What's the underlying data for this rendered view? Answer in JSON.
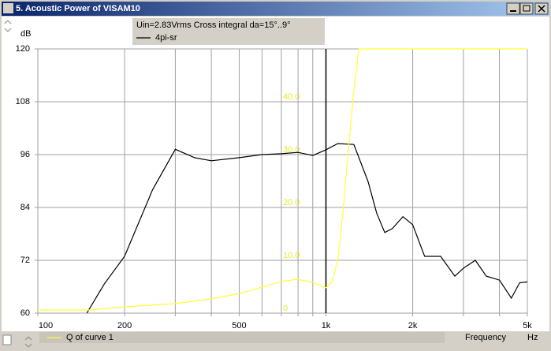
{
  "window": {
    "title": "5. Acoustic Power of VISAM10"
  },
  "chart_data": {
    "type": "line",
    "annotation": "Uin=2.83Vrms Cross integral da=15°..9°",
    "ylabel": "dB",
    "xlabel": "Frequency",
    "xunit": "Hz",
    "xscale": "log",
    "grid": true,
    "xlim": [
      100,
      5000
    ],
    "xticks": [
      100,
      200,
      500,
      {
        "value": 1000,
        "label": "1k"
      },
      {
        "value": 2000,
        "label": "2k"
      },
      {
        "value": 5000,
        "label": "5k"
      }
    ],
    "xminor": [
      300,
      400,
      600,
      700,
      800,
      900,
      3000,
      4000
    ],
    "ylim": [
      60,
      120
    ],
    "yticks": [
      60,
      72,
      84,
      96,
      108,
      120
    ],
    "y2lim": [
      0,
      50
    ],
    "y2ticks": [
      0,
      {
        "value": 10,
        "label": "10.0"
      },
      {
        "value": 20,
        "label": "20.0"
      },
      {
        "value": 30,
        "label": "30.0"
      },
      {
        "value": 40,
        "label": "40.0"
      }
    ],
    "cursor": 1000,
    "series": [
      {
        "name": "4pi-sr",
        "color": "#000000",
        "x": [
          148,
          170,
          200,
          250,
          300,
          350,
          400,
          500,
          600,
          700,
          800,
          900,
          1000,
          1100,
          1250,
          1400,
          1500,
          1600,
          1700,
          1850,
          2000,
          2200,
          2500,
          2800,
          3000,
          3300,
          3600,
          4000,
          4400,
          4700,
          5000
        ],
        "values": [
          60,
          66.6,
          72.9,
          88,
          97.2,
          95.3,
          94.6,
          95.3,
          96,
          96.2,
          96.5,
          95.8,
          97.1,
          98.5,
          98.3,
          89.9,
          82.7,
          78.3,
          79.2,
          81.9,
          80.1,
          72.9,
          72.9,
          68.4,
          70.2,
          72,
          68.4,
          67.5,
          63.4,
          66.9,
          67.1
        ]
      },
      {
        "name": "Q of curve 1",
        "color": "#ffff33",
        "axis": "y2",
        "x": [
          100,
          150,
          200,
          300,
          400,
          500,
          600,
          700,
          800,
          900,
          1000,
          1050,
          1100,
          1150,
          1200,
          1250,
          1300,
          5000
        ],
        "values": [
          0.6,
          0.6,
          1.2,
          1.8,
          2.7,
          3.7,
          4.9,
          6,
          6.4,
          5.8,
          4.8,
          6,
          10,
          20,
          32,
          42,
          50,
          50
        ]
      }
    ]
  }
}
